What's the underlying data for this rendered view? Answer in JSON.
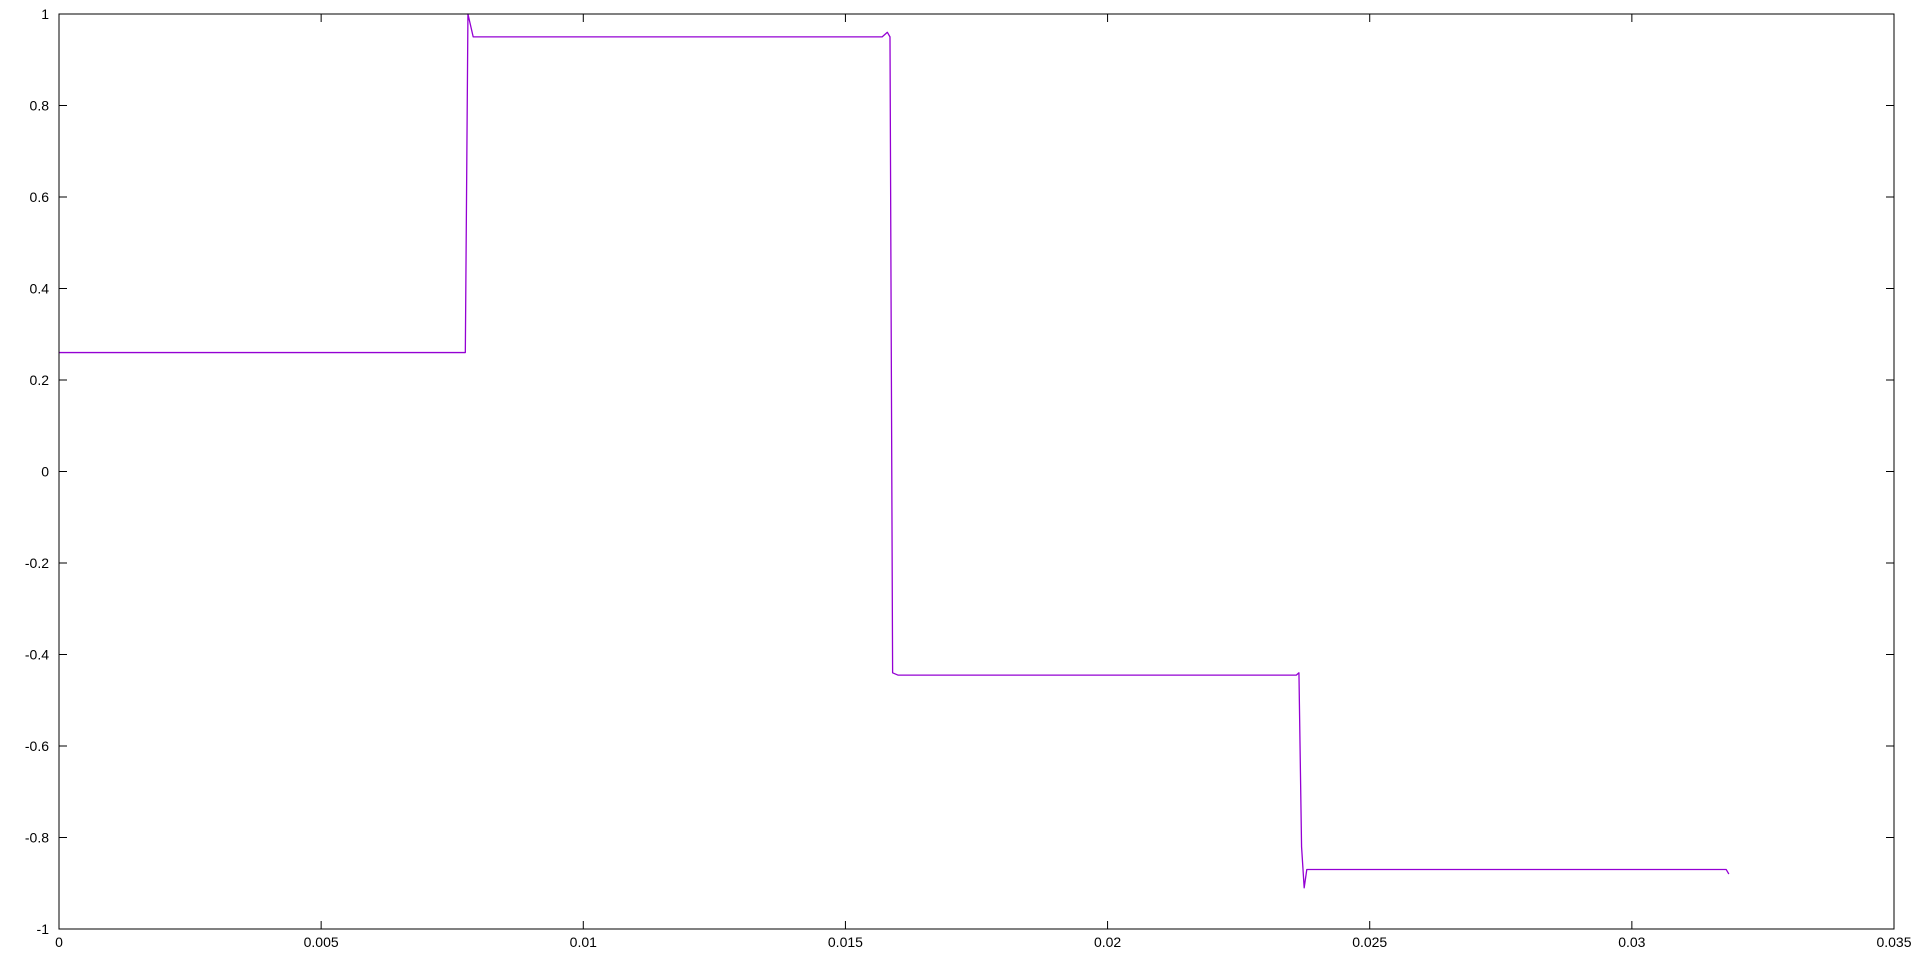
{
  "chart_data": {
    "type": "line",
    "title": "",
    "xlabel": "",
    "ylabel": "",
    "xlim": [
      0,
      0.035
    ],
    "ylim": [
      -1,
      1
    ],
    "xticks": [
      0,
      0.005,
      0.01,
      0.015,
      0.02,
      0.025,
      0.03,
      0.035
    ],
    "xtick_labels": [
      "0",
      "0.005",
      "0.01",
      "0.015",
      "0.02",
      "0.025",
      "0.03",
      "0.035"
    ],
    "yticks": [
      1,
      0.8,
      0.6,
      0.4,
      0.2,
      0,
      -0.2,
      -0.4,
      -0.6,
      -0.8,
      -1
    ],
    "ytick_labels": [
      "1",
      "0.8",
      "0.6",
      "0.4",
      "0.2",
      "0",
      "-0.2",
      "-0.4",
      "-0.6",
      "-0.8",
      "-1"
    ],
    "grid": false,
    "legend": "none",
    "series": [
      {
        "color": "#9400d3",
        "x": [
          0,
          0.0077,
          0.00775,
          0.0078,
          0.0079,
          0.0157,
          0.0158,
          0.01585,
          0.0159,
          0.016,
          0.0236,
          0.02365,
          0.0237,
          0.02375,
          0.0238,
          0.0318,
          0.03185
        ],
        "y": [
          0.26,
          0.26,
          0.26,
          1.0,
          0.95,
          0.95,
          0.96,
          0.95,
          -0.44,
          -0.445,
          -0.445,
          -0.44,
          -0.82,
          -0.91,
          -0.87,
          -0.87,
          -0.88
        ]
      }
    ]
  }
}
